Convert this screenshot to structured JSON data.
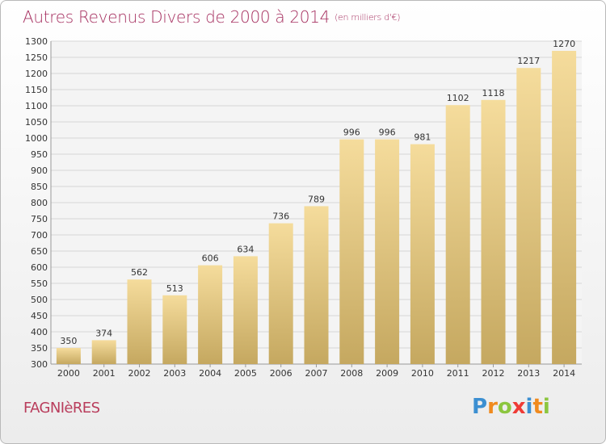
{
  "title": "Autres Revenus Divers de 2000 à 2014",
  "subtitle": "(en milliers d'€)",
  "location": "FAGNIèRES",
  "logo": {
    "text": "Proxiti",
    "letters": [
      {
        "ch": "P",
        "color": "#3c8fd1"
      },
      {
        "ch": "r",
        "color": "#f08a1e"
      },
      {
        "ch": "o",
        "color": "#8cc63f"
      },
      {
        "ch": "x",
        "color": "#ef3b36"
      },
      {
        "ch": "i",
        "color": "#3c8fd1"
      },
      {
        "ch": "t",
        "color": "#f08a1e"
      },
      {
        "ch": "i",
        "color": "#8cc63f"
      }
    ]
  },
  "colors": {
    "bar_top": "#f5dc9c",
    "bar_bottom": "#c5a860",
    "title": "#a63060",
    "grid": "#d6d6d6"
  },
  "chart_data": {
    "type": "bar",
    "categories": [
      "2000",
      "2001",
      "2002",
      "2003",
      "2004",
      "2005",
      "2006",
      "2007",
      "2008",
      "2009",
      "2010",
      "2011",
      "2012",
      "2013",
      "2014"
    ],
    "values": [
      350,
      374,
      562,
      513,
      606,
      634,
      736,
      789,
      996,
      996,
      981,
      1102,
      1118,
      1217,
      1270
    ],
    "ylim": [
      300,
      1300
    ],
    "ytick_step": 50,
    "grid": true,
    "data_labels": true
  }
}
